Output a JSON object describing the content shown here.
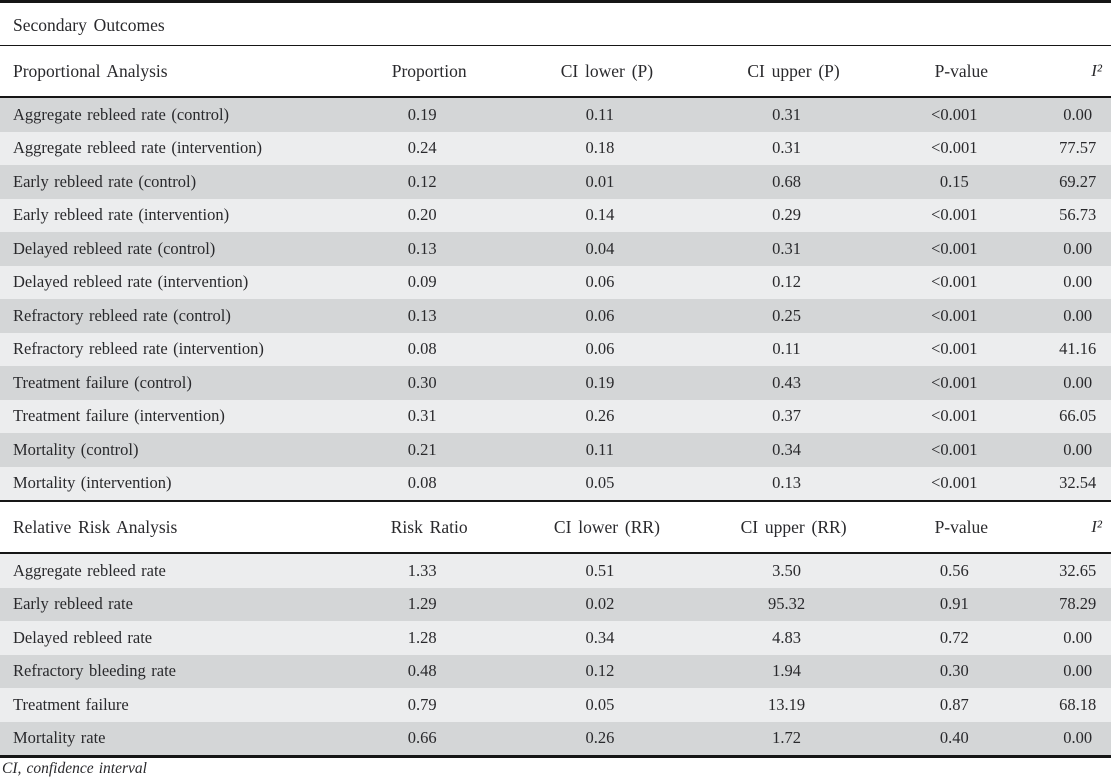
{
  "title": "Secondary Outcomes",
  "footnote": "CI, confidence interval",
  "colors": {
    "row_dark": "#d4d6d7",
    "row_light": "#ecedee",
    "rule_line": "#161616",
    "text": "#29292c",
    "background": "#ffffff"
  },
  "sections": [
    {
      "name": "Proportional Analysis",
      "columns": [
        "Proportional Analysis",
        "Proportion",
        "CI lower (P)",
        "CI upper (P)",
        "P-value",
        "I²"
      ],
      "first_stripe": "dark",
      "rows": [
        [
          "Aggregate rebleed rate (control)",
          "0.19",
          "0.11",
          "0.31",
          "<0.001",
          "0.00"
        ],
        [
          "Aggregate rebleed rate (intervention)",
          "0.24",
          "0.18",
          "0.31",
          "<0.001",
          "77.57"
        ],
        [
          "Early rebleed rate (control)",
          "0.12",
          "0.01",
          "0.68",
          "0.15",
          "69.27"
        ],
        [
          "Early rebleed rate (intervention)",
          "0.20",
          "0.14",
          "0.29",
          "<0.001",
          "56.73"
        ],
        [
          "Delayed rebleed rate (control)",
          "0.13",
          "0.04",
          "0.31",
          "<0.001",
          "0.00"
        ],
        [
          "Delayed rebleed rate (intervention)",
          "0.09",
          "0.06",
          "0.12",
          "<0.001",
          "0.00"
        ],
        [
          "Refractory rebleed rate (control)",
          "0.13",
          "0.06",
          "0.25",
          "<0.001",
          "0.00"
        ],
        [
          "Refractory rebleed rate (intervention)",
          "0.08",
          "0.06",
          "0.11",
          "<0.001",
          "41.16"
        ],
        [
          "Treatment failure (control)",
          "0.30",
          "0.19",
          "0.43",
          "<0.001",
          "0.00"
        ],
        [
          "Treatment failure (intervention)",
          "0.31",
          "0.26",
          "0.37",
          "<0.001",
          "66.05"
        ],
        [
          "Mortality (control)",
          "0.21",
          "0.11",
          "0.34",
          "<0.001",
          "0.00"
        ],
        [
          "Mortality (intervention)",
          "0.08",
          "0.05",
          "0.13",
          "<0.001",
          "32.54"
        ]
      ]
    },
    {
      "name": "Relative Risk Analysis",
      "columns": [
        "Relative Risk Analysis",
        "Risk Ratio",
        "CI lower (RR)",
        "CI upper (RR)",
        "P-value",
        "I²"
      ],
      "first_stripe": "light",
      "rows": [
        [
          "Aggregate rebleed rate",
          "1.33",
          "0.51",
          "3.50",
          "0.56",
          "32.65"
        ],
        [
          "Early rebleed rate",
          "1.29",
          "0.02",
          "95.32",
          "0.91",
          "78.29"
        ],
        [
          "Delayed rebleed rate",
          "1.28",
          "0.34",
          "4.83",
          "0.72",
          "0.00"
        ],
        [
          "Refractory bleeding rate",
          "0.48",
          "0.12",
          "1.94",
          "0.30",
          "0.00"
        ],
        [
          "Treatment failure",
          "0.79",
          "0.05",
          "13.19",
          "0.87",
          "68.18"
        ],
        [
          "Mortality rate",
          "0.66",
          "0.26",
          "1.72",
          "0.40",
          "0.00"
        ]
      ]
    }
  ]
}
